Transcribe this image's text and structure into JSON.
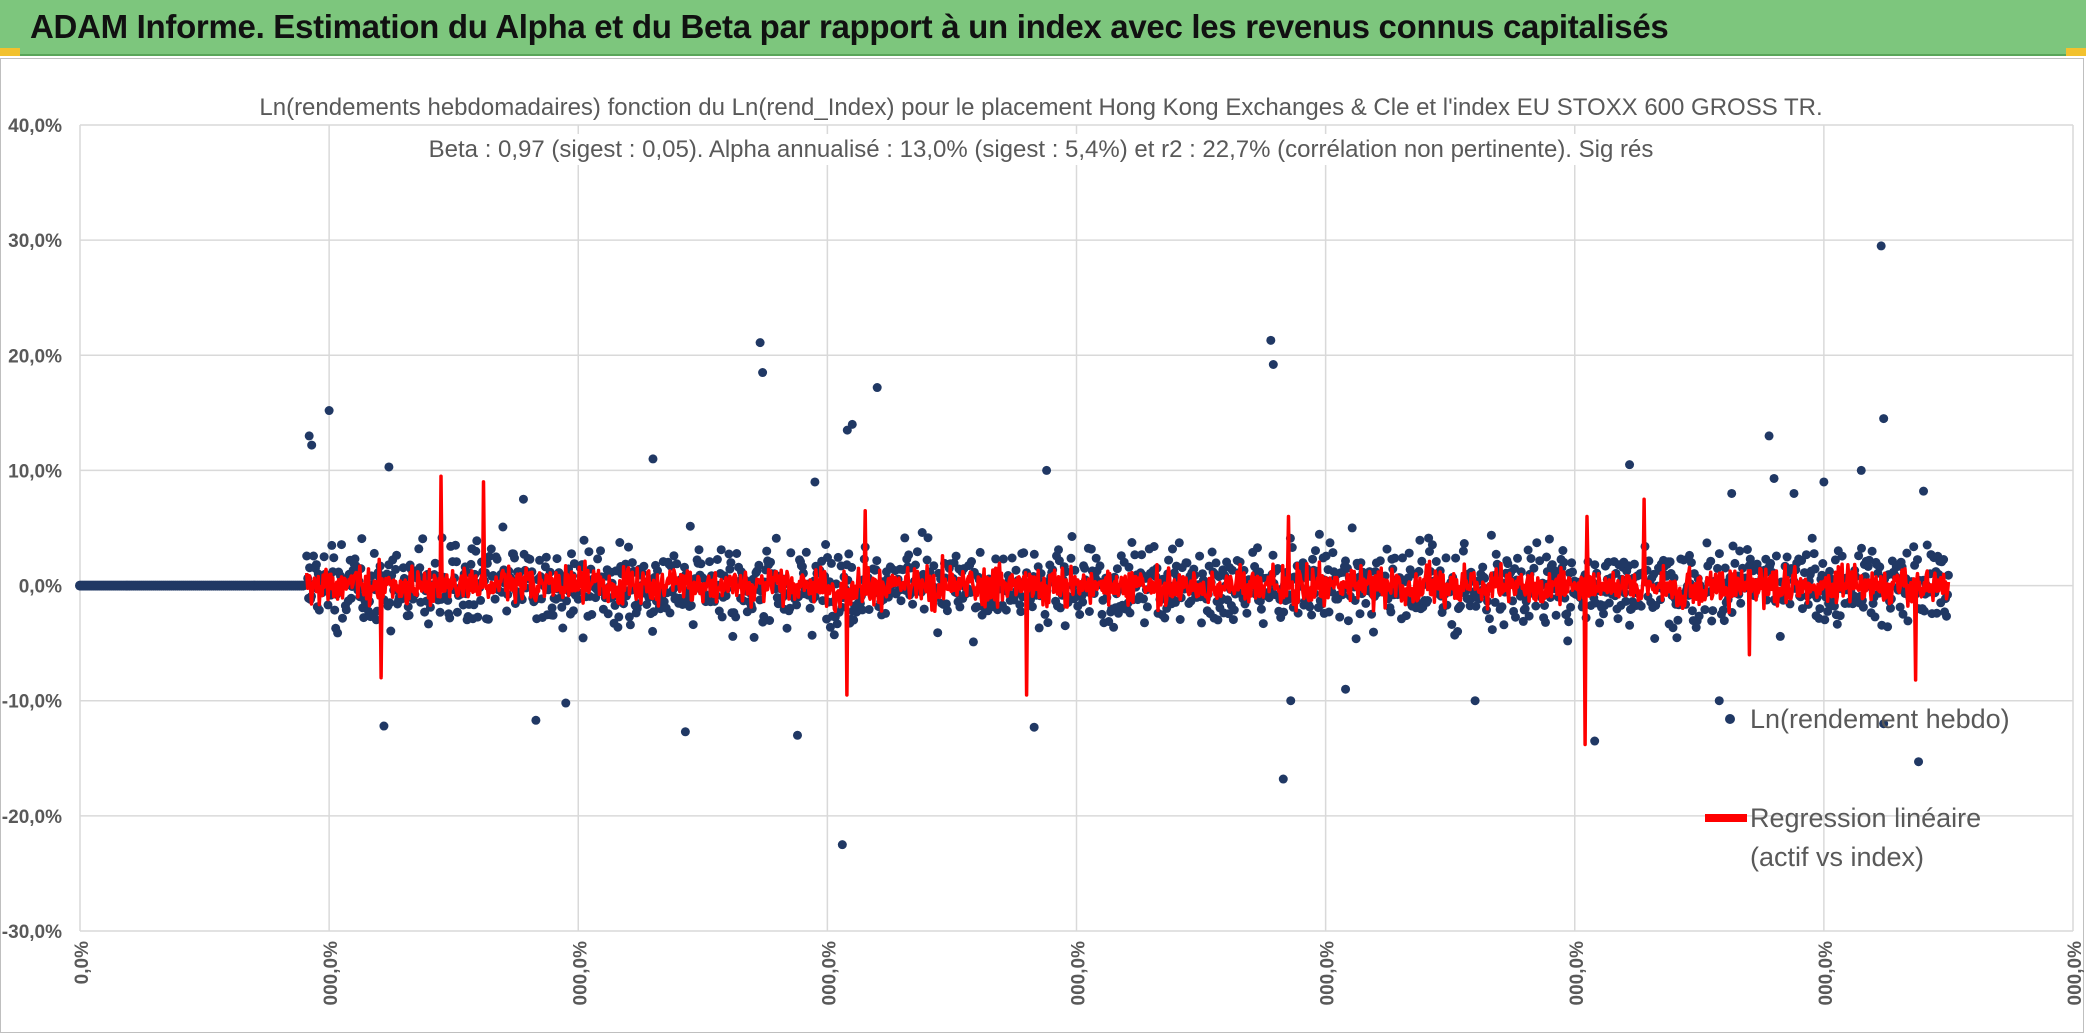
{
  "banner": {
    "title": "ADAM Informe. Estimation du Alpha et du Beta par rapport à un index avec les revenus connus capitalisés"
  },
  "colors": {
    "banner_bg": "#7dc67d",
    "scatter": "#203864",
    "regression": "#ff0000",
    "grid": "#d9d9d9",
    "text": "#595959"
  },
  "chart_data": {
    "type": "scatter",
    "title": "Ln(rendements hebdomadaires) fonction du Ln(rend_Index) pour le placement Hong Kong Exchanges & Cle et l'index EU STOXX 600 GROSS TR.",
    "subtitle": "Beta : 0,97 (sigest : 0,05). Alpha annualisé : 13,0% (sigest : 5,4%) et r2 : 22,7% (corrélation non pertinente). Sig rés",
    "ylim": [
      -0.3,
      0.4
    ],
    "y_ticks": [
      0.4,
      0.3,
      0.2,
      0.1,
      0.0,
      -0.1,
      -0.2,
      -0.3
    ],
    "y_tick_labels": [
      "40,0%",
      "30,0%",
      "20,0%",
      "10,0%",
      "0,0%",
      "-10,0%",
      "-20,0%",
      "-30,0%"
    ],
    "x_tick_labels": [
      "0,0%",
      "000,0%",
      "000,0%",
      "000,0%",
      "000,0%",
      "000,0%",
      "000,0%",
      "000,0%",
      "000,0%"
    ],
    "x_range": [
      0,
      8
    ],
    "legend": [
      {
        "label": "Ln(rendement hebdo)",
        "marker": "dot"
      },
      {
        "label": "Regression linéaire (actif vs index)",
        "label_lines": [
          "Regression linéaire",
          "(actif vs index)"
        ],
        "marker": "line"
      }
    ],
    "series": [
      {
        "name": "Ln(rendement hebdo)",
        "flat_segment": {
          "x_start": 0.0,
          "x_end": 0.9,
          "y": 0.0
        },
        "data_start_x": 0.91,
        "data_end_x": 7.5,
        "outliers": [
          {
            "x": 0.92,
            "y": 0.13
          },
          {
            "x": 0.93,
            "y": 0.122
          },
          {
            "x": 1.0,
            "y": 0.152
          },
          {
            "x": 1.22,
            "y": -0.122
          },
          {
            "x": 1.24,
            "y": 0.103
          },
          {
            "x": 1.78,
            "y": 0.075
          },
          {
            "x": 1.83,
            "y": -0.117
          },
          {
            "x": 1.95,
            "y": -0.102
          },
          {
            "x": 2.3,
            "y": 0.11
          },
          {
            "x": 2.43,
            "y": -0.127
          },
          {
            "x": 2.73,
            "y": 0.211
          },
          {
            "x": 2.74,
            "y": 0.185
          },
          {
            "x": 2.88,
            "y": -0.13
          },
          {
            "x": 2.95,
            "y": 0.09
          },
          {
            "x": 3.06,
            "y": -0.225
          },
          {
            "x": 3.08,
            "y": 0.135
          },
          {
            "x": 3.1,
            "y": 0.14
          },
          {
            "x": 3.2,
            "y": 0.172
          },
          {
            "x": 3.83,
            "y": -0.123
          },
          {
            "x": 3.88,
            "y": 0.1
          },
          {
            "x": 4.78,
            "y": 0.213
          },
          {
            "x": 4.79,
            "y": 0.192
          },
          {
            "x": 4.83,
            "y": -0.168
          },
          {
            "x": 4.86,
            "y": -0.1
          },
          {
            "x": 5.08,
            "y": -0.09
          },
          {
            "x": 5.6,
            "y": -0.1
          },
          {
            "x": 6.08,
            "y": -0.135
          },
          {
            "x": 6.22,
            "y": 0.105
          },
          {
            "x": 6.58,
            "y": -0.1
          },
          {
            "x": 6.63,
            "y": 0.08
          },
          {
            "x": 6.78,
            "y": 0.13
          },
          {
            "x": 6.8,
            "y": 0.093
          },
          {
            "x": 6.88,
            "y": 0.08
          },
          {
            "x": 7.0,
            "y": 0.09
          },
          {
            "x": 7.15,
            "y": 0.1
          },
          {
            "x": 7.23,
            "y": 0.295
          },
          {
            "x": 7.24,
            "y": 0.145
          },
          {
            "x": 7.24,
            "y": -0.12
          },
          {
            "x": 7.38,
            "y": -0.153
          },
          {
            "x": 7.4,
            "y": 0.082
          }
        ]
      },
      {
        "name": "Regression linéaire (actif vs index)",
        "beta": 0.97,
        "spikes": [
          {
            "x": 1.21,
            "y": -0.08
          },
          {
            "x": 1.45,
            "y": 0.095
          },
          {
            "x": 1.62,
            "y": 0.09
          },
          {
            "x": 3.08,
            "y": -0.095
          },
          {
            "x": 3.15,
            "y": 0.065
          },
          {
            "x": 3.8,
            "y": -0.095
          },
          {
            "x": 4.85,
            "y": 0.06
          },
          {
            "x": 6.04,
            "y": -0.138
          },
          {
            "x": 6.05,
            "y": 0.06
          },
          {
            "x": 6.28,
            "y": 0.075
          },
          {
            "x": 6.7,
            "y": -0.06
          },
          {
            "x": 7.37,
            "y": -0.082
          }
        ]
      }
    ]
  }
}
